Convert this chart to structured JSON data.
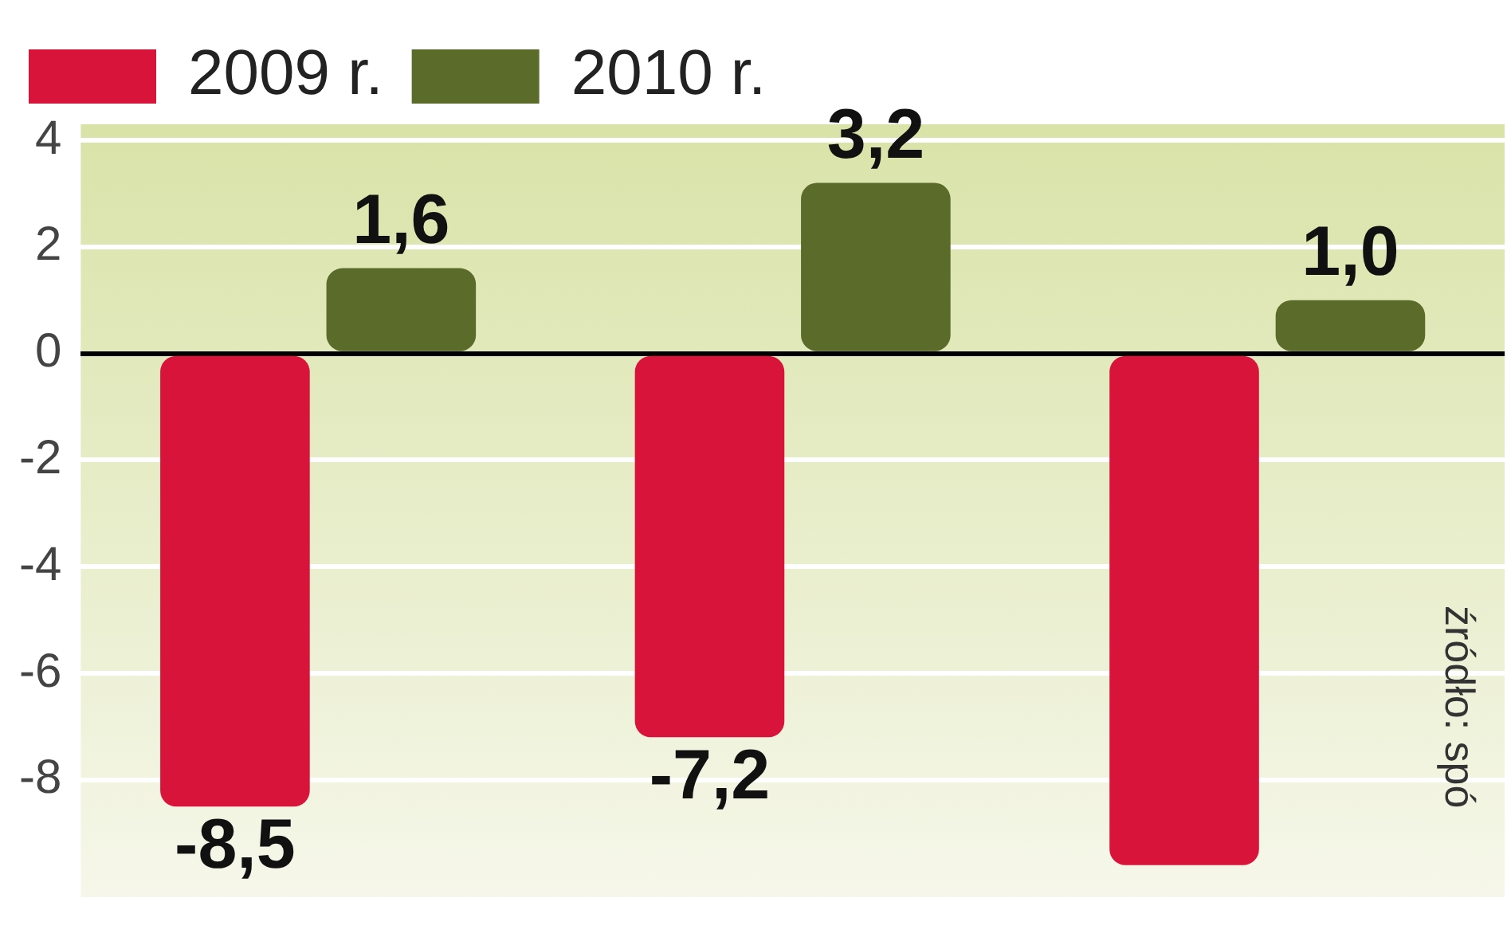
{
  "chart_data": {
    "type": "bar",
    "categories": [
      null,
      null,
      null
    ],
    "series": [
      {
        "name": "2009 r.",
        "color": "#d8143a",
        "values": [
          -8.5,
          -7.2,
          -9.6
        ],
        "value_labels": [
          "-8,5",
          "-7,2",
          null
        ]
      },
      {
        "name": "2010 r.",
        "color": "#5a6b2a",
        "values": [
          1.6,
          3.2,
          1.0
        ],
        "value_labels": [
          "1,6",
          "3,2",
          "1,0"
        ]
      }
    ],
    "ylim": [
      -10.2,
      4.3
    ],
    "yticks": [
      4,
      2,
      0,
      -2,
      -4,
      -6,
      -8
    ],
    "grid": "y",
    "legend": "top left",
    "tick_labels": "y",
    "annotations": [
      "źródło: spó"
    ]
  }
}
